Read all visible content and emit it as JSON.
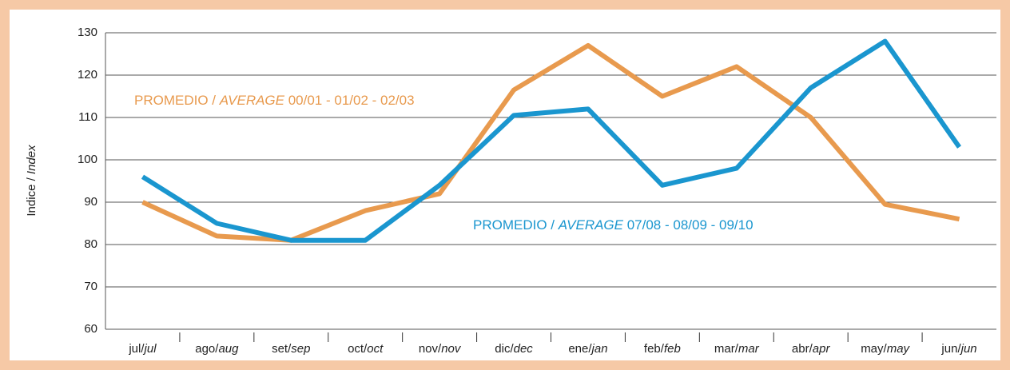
{
  "chart_data": {
    "type": "line",
    "y_label": "Indice / Index",
    "categories": [
      "jul/jul",
      "ago/aug",
      "set/sep",
      "oct/oct",
      "nov/nov",
      "dic/dec",
      "ene/jan",
      "feb/feb",
      "mar/mar",
      "abr/apr",
      "may/may",
      "jun/jun"
    ],
    "series": [
      {
        "name": "PROMEDIO / AVERAGE 00/01 - 01/02 - 02/03",
        "color": "#e89a4e",
        "values": [
          90,
          82,
          81,
          88,
          92,
          116.5,
          127,
          115,
          122,
          110,
          89.5,
          86
        ]
      },
      {
        "name": "PROMEDIO / AVERAGE 07/08 - 08/09 - 09/10",
        "color": "#1a96cf",
        "values": [
          96,
          85,
          81,
          81,
          94,
          110.5,
          112,
          94,
          98,
          117,
          128,
          103
        ]
      }
    ],
    "ylim": [
      60,
      130
    ],
    "yticks": [
      60,
      70,
      80,
      90,
      100,
      110,
      120,
      130
    ],
    "grid": true
  }
}
